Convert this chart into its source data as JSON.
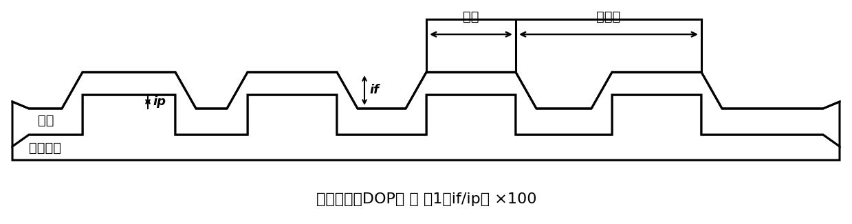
{
  "fig_width": 12.39,
  "fig_height": 3.26,
  "dpi": 100,
  "bg_color": "#ffffff",
  "line_color": "#000000",
  "line_width": 2.2,
  "formula_text": "平坦化率（DOP） ＝ （1－if/ip） ×100",
  "label_tuma": "涂膜",
  "label_jichai": "级差基板",
  "label_xianku": "线宽",
  "label_xianjianchu": "线间距",
  "label_ip": "ip",
  "label_if": "if"
}
